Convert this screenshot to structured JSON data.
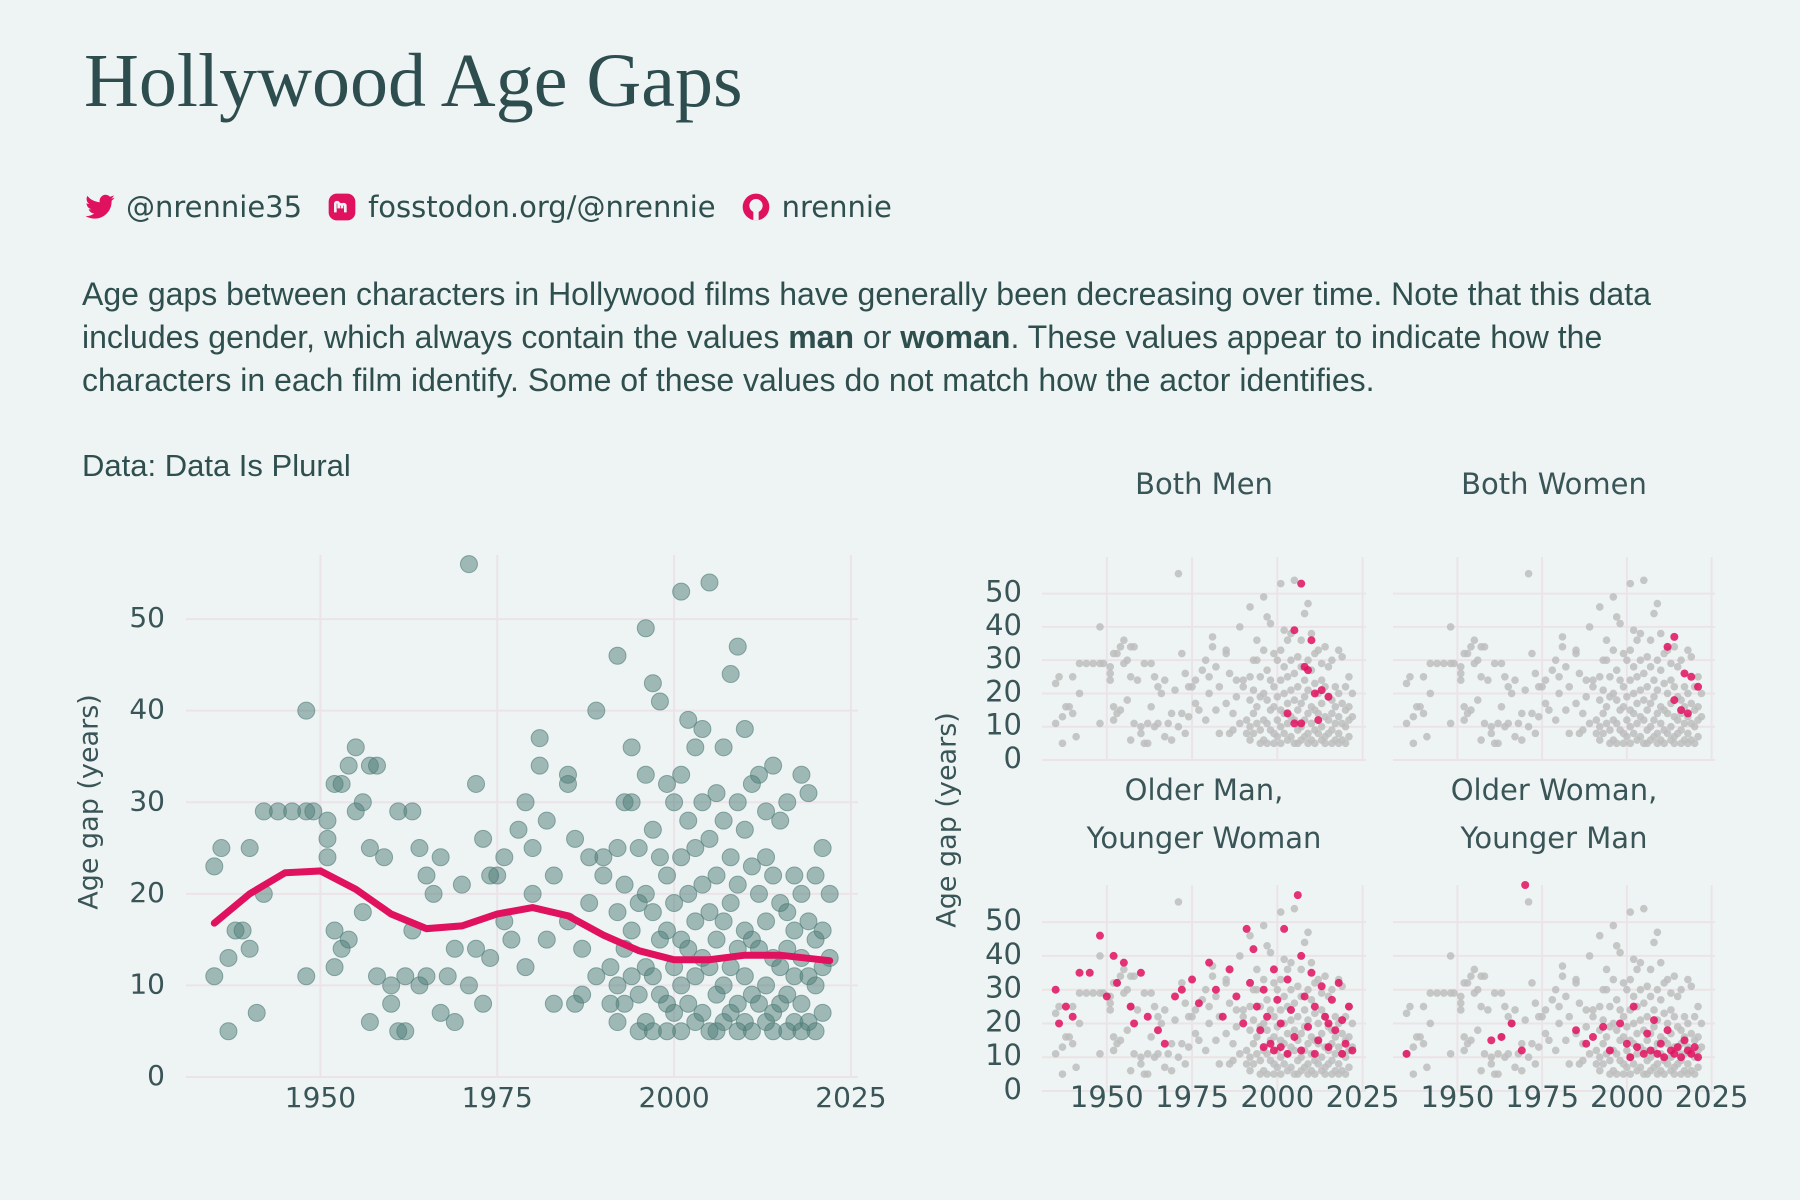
{
  "header": {
    "title": "Hollywood Age Gaps",
    "socials": [
      "@nrennie35",
      "fosstodon.org/@nrennie",
      "nrennie"
    ],
    "description": [
      "Age gaps between characters in Hollywood films have generally been decreasing over time. Note that this data includes gender, which always contain the values ",
      "man",
      " or ",
      "woman",
      ". These values appear to indicate how the characters in each film identify. Some of these values do not match how the actor identifies."
    ],
    "source": "Data: Data Is Plural"
  },
  "chart_data": [
    {
      "type": "scatter",
      "y_label": "Age gap (years)",
      "xlim": [
        1931,
        2026
      ],
      "ylim": [
        0,
        57
      ],
      "xticks": [
        1950,
        1975,
        2000,
        2025
      ],
      "yticks": [
        0,
        10,
        20,
        30,
        40,
        50
      ],
      "grid": true,
      "series": [
        {
          "type": "scatter",
          "color": "#4e7c78",
          "x": [
            1935,
            1935,
            1936,
            1937,
            1937,
            1938,
            1939,
            1940,
            1940,
            1941,
            1942,
            1942,
            1944,
            1946,
            1948,
            1948,
            1948,
            1949,
            1951,
            1951,
            1951,
            1952,
            1952,
            1952,
            1953,
            1953,
            1954,
            1954,
            1955,
            1955,
            1956,
            1956,
            1957,
            1957,
            1957,
            1958,
            1958,
            1959,
            1960,
            1960,
            1961,
            1961,
            1962,
            1962,
            1963,
            1963,
            1964,
            1964,
            1965,
            1965,
            1966,
            1967,
            1967,
            1968,
            1969,
            1969,
            1970,
            1971,
            1971,
            1972,
            1972,
            1973,
            1973,
            1974,
            1974,
            1975,
            1976,
            1976,
            1977,
            1978,
            1979,
            1979,
            1980,
            1980,
            1981,
            1981,
            1982,
            1982,
            1983,
            1983,
            1985,
            1985,
            1985,
            1986,
            1986,
            1987,
            1987,
            1988,
            1988,
            1989,
            1989,
            1990,
            1990,
            1991,
            1991,
            1992,
            1992,
            1992,
            1992,
            1992,
            1993,
            1993,
            1993,
            1993,
            1994,
            1994,
            1994,
            1994,
            1995,
            1995,
            1995,
            1995,
            1996,
            1996,
            1996,
            1996,
            1996,
            1997,
            1997,
            1997,
            1997,
            1997,
            1998,
            1998,
            1998,
            1998,
            1999,
            1999,
            1999,
            1999,
            1999,
            2000,
            2000,
            2000,
            2000,
            2001,
            2001,
            2001,
            2001,
            2001,
            2001,
            2002,
            2002,
            2002,
            2002,
            2002,
            2003,
            2003,
            2003,
            2003,
            2003,
            2004,
            2004,
            2004,
            2004,
            2004,
            2005,
            2005,
            2005,
            2005,
            2005,
            2006,
            2006,
            2006,
            2006,
            2006,
            2007,
            2007,
            2007,
            2007,
            2007,
            2008,
            2008,
            2008,
            2008,
            2008,
            2009,
            2009,
            2009,
            2009,
            2009,
            2009,
            2010,
            2010,
            2010,
            2010,
            2010,
            2011,
            2011,
            2011,
            2011,
            2011,
            2012,
            2012,
            2012,
            2012,
            2013,
            2013,
            2013,
            2013,
            2013,
            2014,
            2014,
            2014,
            2014,
            2014,
            2015,
            2015,
            2015,
            2015,
            2016,
            2016,
            2016,
            2016,
            2016,
            2017,
            2017,
            2017,
            2017,
            2018,
            2018,
            2018,
            2018,
            2018,
            2019,
            2019,
            2019,
            2019,
            2020,
            2020,
            2020,
            2020,
            2021,
            2021,
            2021,
            2021,
            2022,
            2022
          ],
          "values": [
            23,
            11,
            25,
            5,
            13,
            16,
            16,
            25,
            14,
            7,
            20,
            29,
            29,
            29,
            29,
            40,
            11,
            29,
            28,
            24,
            26,
            32,
            12,
            16,
            32,
            14,
            34,
            15,
            36,
            29,
            18,
            30,
            34,
            6,
            25,
            34,
            11,
            24,
            8,
            10,
            29,
            5,
            11,
            5,
            29,
            16,
            10,
            25,
            11,
            22,
            20,
            7,
            24,
            11,
            14,
            6,
            21,
            56,
            10,
            32,
            14,
            26,
            8,
            22,
            13,
            22,
            17,
            24,
            15,
            27,
            30,
            12,
            20,
            25,
            37,
            34,
            15,
            28,
            22,
            8,
            33,
            32,
            17,
            26,
            8,
            9,
            14,
            24,
            19,
            40,
            11,
            22,
            24,
            12,
            8,
            46,
            25,
            18,
            10,
            6,
            30,
            21,
            14,
            8,
            36,
            30,
            16,
            11,
            25,
            19,
            9,
            5,
            49,
            33,
            20,
            12,
            6,
            43,
            27,
            18,
            11,
            5,
            41,
            24,
            15,
            9,
            32,
            22,
            16,
            8,
            5,
            30,
            19,
            12,
            7,
            53,
            33,
            24,
            15,
            10,
            5,
            39,
            28,
            20,
            14,
            8,
            36,
            25,
            17,
            11,
            6,
            38,
            30,
            21,
            13,
            7,
            54,
            26,
            18,
            12,
            5,
            31,
            22,
            15,
            9,
            5,
            36,
            28,
            17,
            10,
            6,
            44,
            24,
            19,
            12,
            7,
            47,
            30,
            21,
            14,
            8,
            5,
            38,
            27,
            16,
            11,
            6,
            32,
            23,
            15,
            9,
            5,
            33,
            20,
            14,
            8,
            29,
            24,
            17,
            10,
            6,
            34,
            22,
            13,
            7,
            5,
            28,
            19,
            12,
            8,
            30,
            18,
            14,
            9,
            5,
            22,
            16,
            11,
            6,
            33,
            20,
            13,
            8,
            5,
            31,
            17,
            11,
            6,
            22,
            15,
            10,
            5,
            25,
            16,
            12,
            7,
            20,
            13
          ]
        },
        {
          "type": "line",
          "color": "#e0115f",
          "x": [
            1935,
            1940,
            1945,
            1950,
            1955,
            1960,
            1965,
            1970,
            1975,
            1980,
            1985,
            1990,
            1995,
            2000,
            2005,
            2010,
            2015,
            2022
          ],
          "values": [
            16.8,
            20,
            22.3,
            22.5,
            20.5,
            17.8,
            16.2,
            16.5,
            17.8,
            18.5,
            17.6,
            15.5,
            13.8,
            12.8,
            12.8,
            13.3,
            13.3,
            12.7
          ]
        }
      ]
    },
    {
      "type": "facet-scatter",
      "y_label": "Age gap (years)",
      "xlim": [
        1931,
        2026
      ],
      "ylim": [
        0,
        61
      ],
      "xticks": [
        1950,
        1975,
        2000,
        2025
      ],
      "yticks": [
        0,
        10,
        20,
        30,
        40,
        50
      ],
      "grid": true,
      "background_color": "#bdbdbd",
      "highlight_color": "#e0115f",
      "panels": [
        {
          "title": [
            "Both Men"
          ],
          "x": [
            2003,
            2005,
            2005,
            2007,
            2007,
            2008,
            2009,
            2010,
            2011,
            2012,
            2013,
            2015
          ],
          "values": [
            14,
            39,
            11,
            53,
            11,
            28,
            27,
            36,
            20,
            12,
            21,
            19
          ]
        },
        {
          "title": [
            "Both Women"
          ],
          "x": [
            2012,
            2014,
            2014,
            2016,
            2017,
            2018,
            2019,
            2021
          ],
          "values": [
            34,
            37,
            18,
            15,
            26,
            14,
            25,
            22
          ]
        },
        {
          "title": [
            "Older Man,",
            "Younger Woman"
          ],
          "x": [
            1935,
            1936,
            1938,
            1940,
            1942,
            1945,
            1948,
            1950,
            1952,
            1953,
            1955,
            1957,
            1958,
            1960,
            1962,
            1965,
            1967,
            1970,
            1972,
            1975,
            1977,
            1980,
            1982,
            1984,
            1986,
            1988,
            1990,
            1991,
            1992,
            1993,
            1994,
            1995,
            1996,
            1997,
            1998,
            1999,
            2000,
            2001,
            2002,
            2003,
            2004,
            2005,
            2006,
            2007,
            2008,
            2009,
            2010,
            2011,
            2012,
            2013,
            2014,
            2015,
            2016,
            2017,
            2018,
            2019,
            2020,
            2021,
            2022,
            1999,
            2003,
            2007,
            2011,
            2015,
            2019,
            1996,
            2001
          ],
          "values": [
            30,
            20,
            25,
            22,
            35,
            35,
            46,
            28,
            40,
            32,
            38,
            25,
            20,
            35,
            22,
            18,
            14,
            28,
            30,
            33,
            26,
            38,
            30,
            22,
            36,
            28,
            20,
            48,
            32,
            42,
            25,
            18,
            30,
            22,
            14,
            36,
            27,
            20,
            48,
            33,
            24,
            16,
            58,
            40,
            28,
            19,
            35,
            25,
            15,
            31,
            22,
            13,
            27,
            18,
            32,
            21,
            14,
            25,
            12,
            12,
            11,
            12,
            11,
            20,
            11,
            13,
            13
          ]
        },
        {
          "title": [
            "Older Woman,",
            "Younger Man"
          ],
          "x": [
            1935,
            1960,
            1963,
            1966,
            1969,
            1970,
            1985,
            1988,
            1990,
            1993,
            1995,
            1998,
            2000,
            2001,
            2002,
            2003,
            2005,
            2006,
            2007,
            2008,
            2009,
            2010,
            2011,
            2012,
            2013,
            2014,
            2015,
            2016,
            2017,
            2018,
            2019,
            2020,
            2021
          ],
          "values": [
            11,
            15,
            16,
            20,
            12,
            61,
            18,
            14,
            16,
            19,
            12,
            20,
            14,
            10,
            25,
            13,
            11,
            17,
            12,
            21,
            11,
            14,
            10,
            18,
            12,
            11,
            13,
            10,
            15,
            12,
            11,
            13,
            10
          ]
        }
      ]
    }
  ]
}
